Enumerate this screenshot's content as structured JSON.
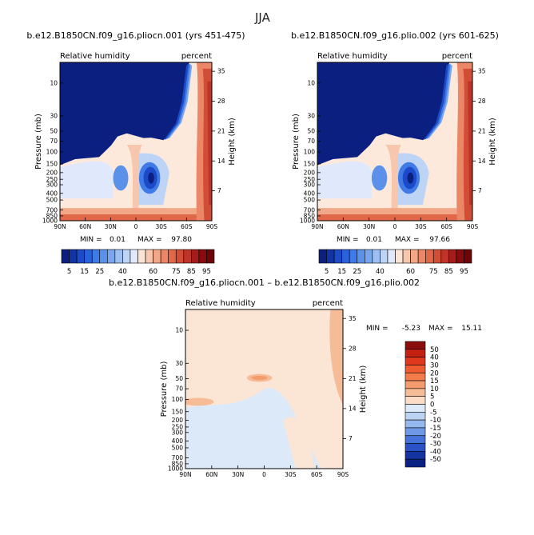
{
  "figure_title": "JJA",
  "chart_data": [
    {
      "type": "heatmap",
      "title": "b.e12.B1850CN.f09_g16.pliocn.001 (yrs 451-475)",
      "left_label": "Relative humidity",
      "right_label": "percent",
      "ylabel": "Pressure (mb)",
      "ylabel_right": "Height (km)",
      "x_ticks": [
        "90N",
        "60N",
        "30N",
        "0",
        "30S",
        "60S",
        "90S"
      ],
      "pressure_ticks": [
        "10",
        "30",
        "50",
        "70",
        "100",
        "150",
        "200",
        "250",
        "300",
        "400",
        "500",
        "700",
        "850",
        "1000"
      ],
      "height_ticks": [
        "35",
        "28",
        "21",
        "14",
        "7"
      ],
      "min_label": "MIN =",
      "min_value": "0.01",
      "max_label": "MAX =",
      "max_value": "97.80",
      "colorbar_levels": [
        5,
        10,
        15,
        20,
        25,
        30,
        35,
        40,
        45,
        50,
        55,
        60,
        65,
        70,
        75,
        80,
        85,
        90,
        95
      ],
      "colorbar_labels": [
        "5",
        "15",
        "25",
        "40",
        "60",
        "75",
        "85",
        "95"
      ],
      "colorbar_colors": [
        "#0a1f80",
        "#1133a3",
        "#1b4bc8",
        "#2a62db",
        "#3f7ae6",
        "#5c91ea",
        "#7aa6ee",
        "#9dbff3",
        "#bed4f7",
        "#dfe9fb",
        "#fbe4d6",
        "#f7c7ad",
        "#f2a888",
        "#eb8766",
        "#e06849",
        "#d24d36",
        "#bf3427",
        "#a51d1a",
        "#870b0f",
        "#6e0509"
      ]
    },
    {
      "type": "heatmap",
      "title": "b.e12.B1850CN.f09_g16.plio.002 (yrs 601-625)",
      "left_label": "Relative humidity",
      "right_label": "percent",
      "ylabel": "Pressure (mb)",
      "ylabel_right": "Height (km)",
      "x_ticks": [
        "90N",
        "60N",
        "30N",
        "0",
        "30S",
        "60S",
        "90S"
      ],
      "pressure_ticks": [
        "10",
        "30",
        "50",
        "70",
        "100",
        "150",
        "200",
        "250",
        "300",
        "400",
        "500",
        "700",
        "850",
        "1000"
      ],
      "height_ticks": [
        "35",
        "28",
        "21",
        "14",
        "7"
      ],
      "min_label": "MIN =",
      "min_value": "0.01",
      "max_label": "MAX =",
      "max_value": "97.66",
      "colorbar_levels": [
        5,
        10,
        15,
        20,
        25,
        30,
        35,
        40,
        45,
        50,
        55,
        60,
        65,
        70,
        75,
        80,
        85,
        90,
        95
      ],
      "colorbar_labels": [
        "5",
        "15",
        "25",
        "40",
        "60",
        "75",
        "85",
        "95"
      ],
      "colorbar_colors": [
        "#0a1f80",
        "#1133a3",
        "#1b4bc8",
        "#2a62db",
        "#3f7ae6",
        "#5c91ea",
        "#7aa6ee",
        "#9dbff3",
        "#bed4f7",
        "#dfe9fb",
        "#fbe4d6",
        "#f7c7ad",
        "#f2a888",
        "#eb8766",
        "#e06849",
        "#d24d36",
        "#bf3427",
        "#a51d1a",
        "#870b0f",
        "#6e0509"
      ]
    },
    {
      "type": "heatmap",
      "title": "b.e12.B1850CN.f09_g16.pliocn.001 – b.e12.B1850CN.f09_g16.plio.002",
      "left_label": "Relative humidity",
      "right_label": "percent",
      "ylabel": "Pressure (mb)",
      "ylabel_right": "Height (km)",
      "x_ticks": [
        "90N",
        "60N",
        "30N",
        "0",
        "30S",
        "60S",
        "90S"
      ],
      "pressure_ticks": [
        "10",
        "30",
        "50",
        "70",
        "100",
        "150",
        "200",
        "250",
        "300",
        "400",
        "500",
        "700",
        "850",
        "1000"
      ],
      "height_ticks": [
        "35",
        "28",
        "21",
        "14",
        "7"
      ],
      "min_label": "MIN =",
      "min_value": "-5.23",
      "max_label": "MAX =",
      "max_value": "15.11",
      "colorbar_levels": [
        50,
        40,
        30,
        20,
        15,
        10,
        5,
        0,
        -5,
        -10,
        -15,
        -20,
        -30,
        -40,
        -50
      ],
      "colorbar_labels": [
        "50",
        "40",
        "30",
        "20",
        "15",
        "10",
        "5",
        "0",
        "-5",
        "-10",
        "-15",
        "-20",
        "-30",
        "-40",
        "-50"
      ],
      "colorbar_colors": [
        "#8b0d0d",
        "#c42112",
        "#e0381c",
        "#ef5a2e",
        "#f47c4b",
        "#f59c6f",
        "#f6bb97",
        "#fbdcc6",
        "#dce9f8",
        "#bcd3f3",
        "#95b8ee",
        "#6f98e6",
        "#4474db",
        "#2a52c6",
        "#1534a3",
        "#0a2283"
      ]
    }
  ]
}
